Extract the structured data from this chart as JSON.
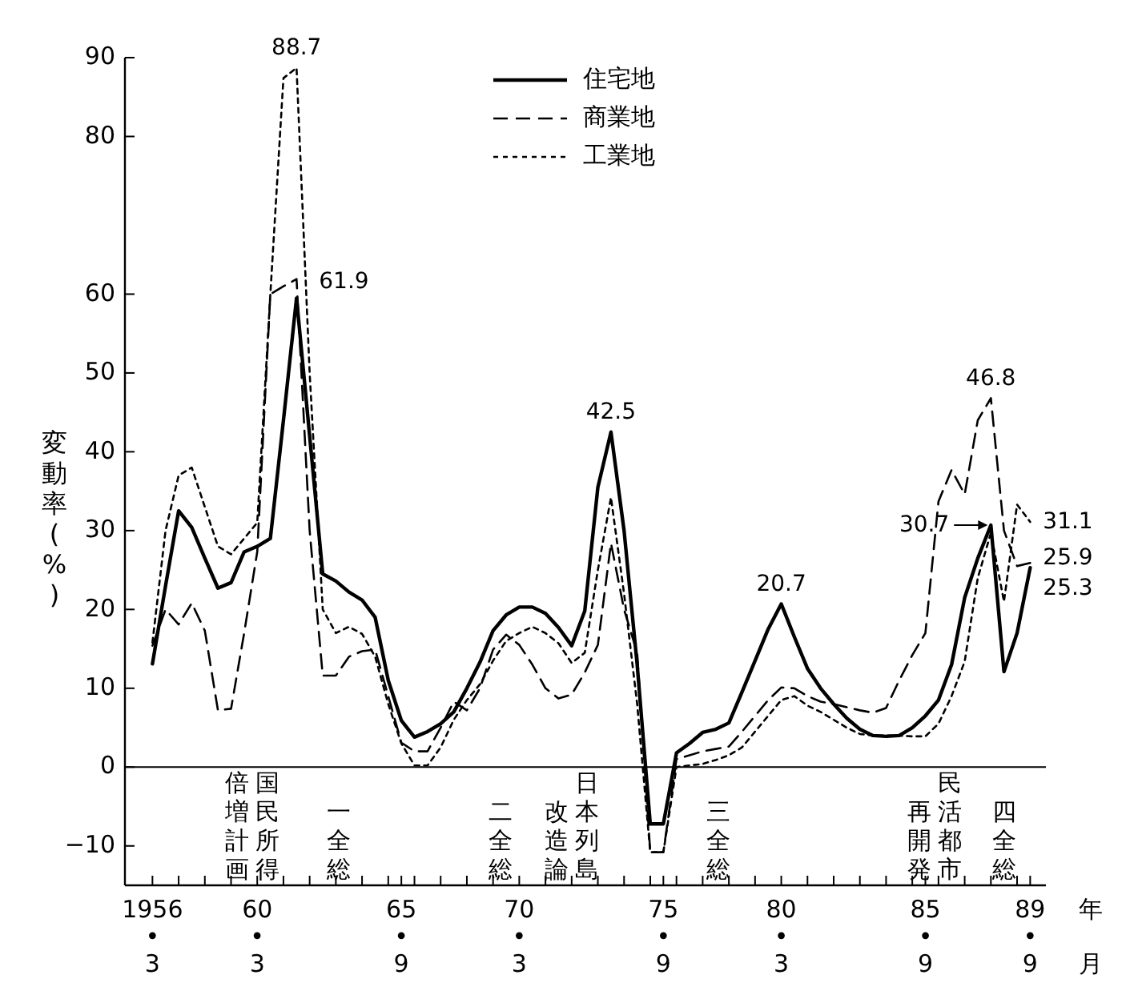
{
  "chart_data": {
    "type": "line",
    "ylabel": "変動率(%)",
    "xlabel": "年月",
    "ylim": [
      -15,
      90
    ],
    "categories": [
      "1956\n•\n3",
      null,
      null,
      null,
      null,
      null,
      null,
      null,
      "60\n•\n3",
      null,
      null,
      null,
      null,
      null,
      null,
      null,
      null,
      null,
      null,
      "65\n•\n9",
      null,
      null,
      null,
      null,
      null,
      null,
      null,
      null,
      "70\n•\n3",
      null,
      null,
      null,
      null,
      null,
      null,
      null,
      null,
      null,
      null,
      "75\n•\n9",
      null,
      null,
      null,
      null,
      null,
      null,
      null,
      null,
      "80\n•\n3",
      null,
      null,
      null,
      null,
      null,
      null,
      null,
      null,
      null,
      null,
      "85\n•\n9",
      null,
      null,
      null,
      null,
      null,
      null,
      null,
      "89\n•\n9"
    ],
    "yticks": [
      -10,
      0,
      10,
      20,
      30,
      40,
      50,
      60,
      80,
      90
    ],
    "grid": false,
    "legend": "top",
    "ref_lines": [
      {
        "axis": "y",
        "value": 0
      }
    ],
    "series": [
      {
        "name": "住宅地",
        "color": "#000000",
        "line_style": "solid",
        "values": [
          13.1,
          23,
          32.5,
          30.4,
          26.5,
          22.7,
          23.4,
          27.3,
          28,
          29,
          44,
          59.5,
          42,
          24.5,
          23.6,
          22.2,
          21.2,
          19,
          11,
          5.9,
          3.8,
          4.5,
          5.5,
          7,
          10,
          13.3,
          17.3,
          19.3,
          20.3,
          20.3,
          19.5,
          17.7,
          15.4,
          19.8,
          35.5,
          42.5,
          30,
          13,
          -7.2,
          -7.2,
          1.8,
          3,
          4.4,
          4.8,
          5.6,
          9.5,
          13.5,
          17.5,
          20.7,
          16.5,
          12.5,
          10,
          8,
          6.2,
          4.8,
          4,
          3.9,
          4,
          5,
          6.5,
          8.5,
          13,
          21.5,
          26.5,
          30.7,
          12.1,
          17,
          25.3
        ],
        "value_labels": [
          null,
          null,
          null,
          null,
          null,
          null,
          null,
          null,
          null,
          null,
          null,
          null,
          null,
          null,
          null,
          null,
          null,
          null,
          null,
          null,
          null,
          null,
          null,
          null,
          null,
          null,
          null,
          null,
          null,
          null,
          null,
          null,
          null,
          null,
          null,
          "42.5",
          null,
          null,
          null,
          null,
          null,
          null,
          null,
          null,
          null,
          null,
          null,
          null,
          "20.7",
          null,
          null,
          null,
          null,
          null,
          null,
          null,
          null,
          null,
          null,
          null,
          null,
          null,
          null,
          null,
          "30.7",
          null,
          null,
          "25.3"
        ]
      },
      {
        "name": "商業地",
        "color": "#000000",
        "line_style": "dashed",
        "values": [
          15.4,
          20,
          18.1,
          20.8,
          17.3,
          7.2,
          7.4,
          17,
          27.3,
          60,
          61,
          61.9,
          30,
          11.6,
          11.6,
          14,
          14.7,
          14.9,
          9,
          3.1,
          2,
          2,
          5,
          8.3,
          7.2,
          10,
          14.9,
          16.8,
          15.5,
          13,
          10,
          8.7,
          9.2,
          12,
          15.5,
          28.4,
          20,
          14.5,
          -10.8,
          -10.8,
          1,
          1.5,
          2,
          2.3,
          2.6,
          4.5,
          6.5,
          8.5,
          10.1,
          10,
          9,
          8.3,
          8,
          7.6,
          7.2,
          6.9,
          7.5,
          11,
          14.2,
          17,
          33.7,
          37.7,
          34.6,
          44,
          46.8,
          30,
          25.5,
          25.9
        ],
        "value_labels": [
          null,
          null,
          null,
          null,
          null,
          null,
          null,
          null,
          null,
          null,
          null,
          "61.9",
          null,
          null,
          null,
          null,
          null,
          null,
          null,
          null,
          null,
          null,
          null,
          null,
          null,
          null,
          null,
          null,
          null,
          null,
          null,
          null,
          null,
          null,
          null,
          null,
          null,
          null,
          null,
          null,
          null,
          null,
          null,
          null,
          null,
          null,
          null,
          null,
          null,
          null,
          null,
          null,
          null,
          null,
          null,
          null,
          null,
          null,
          null,
          null,
          null,
          null,
          null,
          null,
          "46.8",
          null,
          null,
          "25.9"
        ]
      },
      {
        "name": "工業地",
        "color": "#000000",
        "line_style": "dotted",
        "values": [
          15.8,
          30,
          37,
          38,
          33,
          28,
          27,
          29,
          31,
          60,
          87.4,
          88.7,
          50,
          20,
          17,
          17.8,
          16.9,
          14,
          8,
          3,
          0.2,
          0.2,
          2.5,
          6,
          8.5,
          10.5,
          13.5,
          16,
          17,
          17.8,
          17,
          15.7,
          13.2,
          14.5,
          25,
          34.2,
          22,
          8,
          -10.8,
          -10.8,
          0,
          0.2,
          0.4,
          0.9,
          1.5,
          2.5,
          4.5,
          6.5,
          8.5,
          9,
          7.8,
          7,
          6,
          5,
          4.2,
          4,
          4,
          4,
          3.9,
          3.9,
          5.5,
          9,
          13.4,
          24,
          29.7,
          21,
          33.3,
          31.1
        ],
        "value_labels": [
          null,
          null,
          null,
          null,
          null,
          null,
          null,
          null,
          null,
          null,
          null,
          "88.7",
          null,
          null,
          null,
          null,
          null,
          null,
          null,
          null,
          null,
          null,
          null,
          null,
          null,
          null,
          null,
          null,
          null,
          null,
          null,
          null,
          null,
          null,
          null,
          null,
          null,
          null,
          null,
          null,
          null,
          null,
          null,
          null,
          null,
          null,
          null,
          null,
          null,
          null,
          null,
          null,
          null,
          null,
          null,
          null,
          null,
          null,
          null,
          null,
          null,
          null,
          null,
          null,
          null,
          null,
          null,
          "31.1"
        ]
      }
    ],
    "annotations": [
      "国民所得倍増計画",
      "一全総",
      "二全総",
      "日本列島改造論",
      "三全総",
      "民活都市再開発",
      "四全総"
    ]
  }
}
